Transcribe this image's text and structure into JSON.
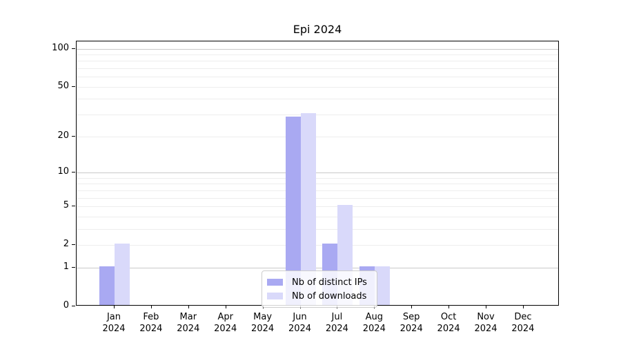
{
  "chart_data": {
    "type": "bar",
    "title": "Epi 2024",
    "year_label": "2024",
    "categories": [
      "Jan",
      "Feb",
      "Mar",
      "Apr",
      "May",
      "Jun",
      "Jul",
      "Aug",
      "Sep",
      "Oct",
      "Nov",
      "Dec"
    ],
    "series": [
      {
        "name": "Nb of distinct IPs",
        "color": "#a9a9f2",
        "values": [
          1,
          0,
          0,
          0,
          0,
          28,
          2,
          1,
          0,
          0,
          0,
          0
        ]
      },
      {
        "name": "Nb of downloads",
        "color": "#d9d9fa",
        "values": [
          2,
          0,
          0,
          0,
          0,
          30,
          5,
          1,
          0,
          0,
          0,
          0
        ]
      }
    ],
    "yscale": "log1p",
    "ylim": [
      0,
      114
    ],
    "yticks": [
      100,
      50,
      20,
      10,
      5,
      2,
      1,
      0
    ],
    "major_gridlines": [
      1,
      10,
      100
    ],
    "minor_gridlines": [
      2,
      3,
      4,
      5,
      6,
      7,
      8,
      9,
      20,
      30,
      40,
      50,
      60,
      70,
      80,
      90
    ],
    "legend_position": "lower center",
    "grid": "on",
    "colors": {
      "axis": "#000000",
      "minor_grid": "#ededed",
      "major_grid": "#c9c9c9"
    }
  }
}
